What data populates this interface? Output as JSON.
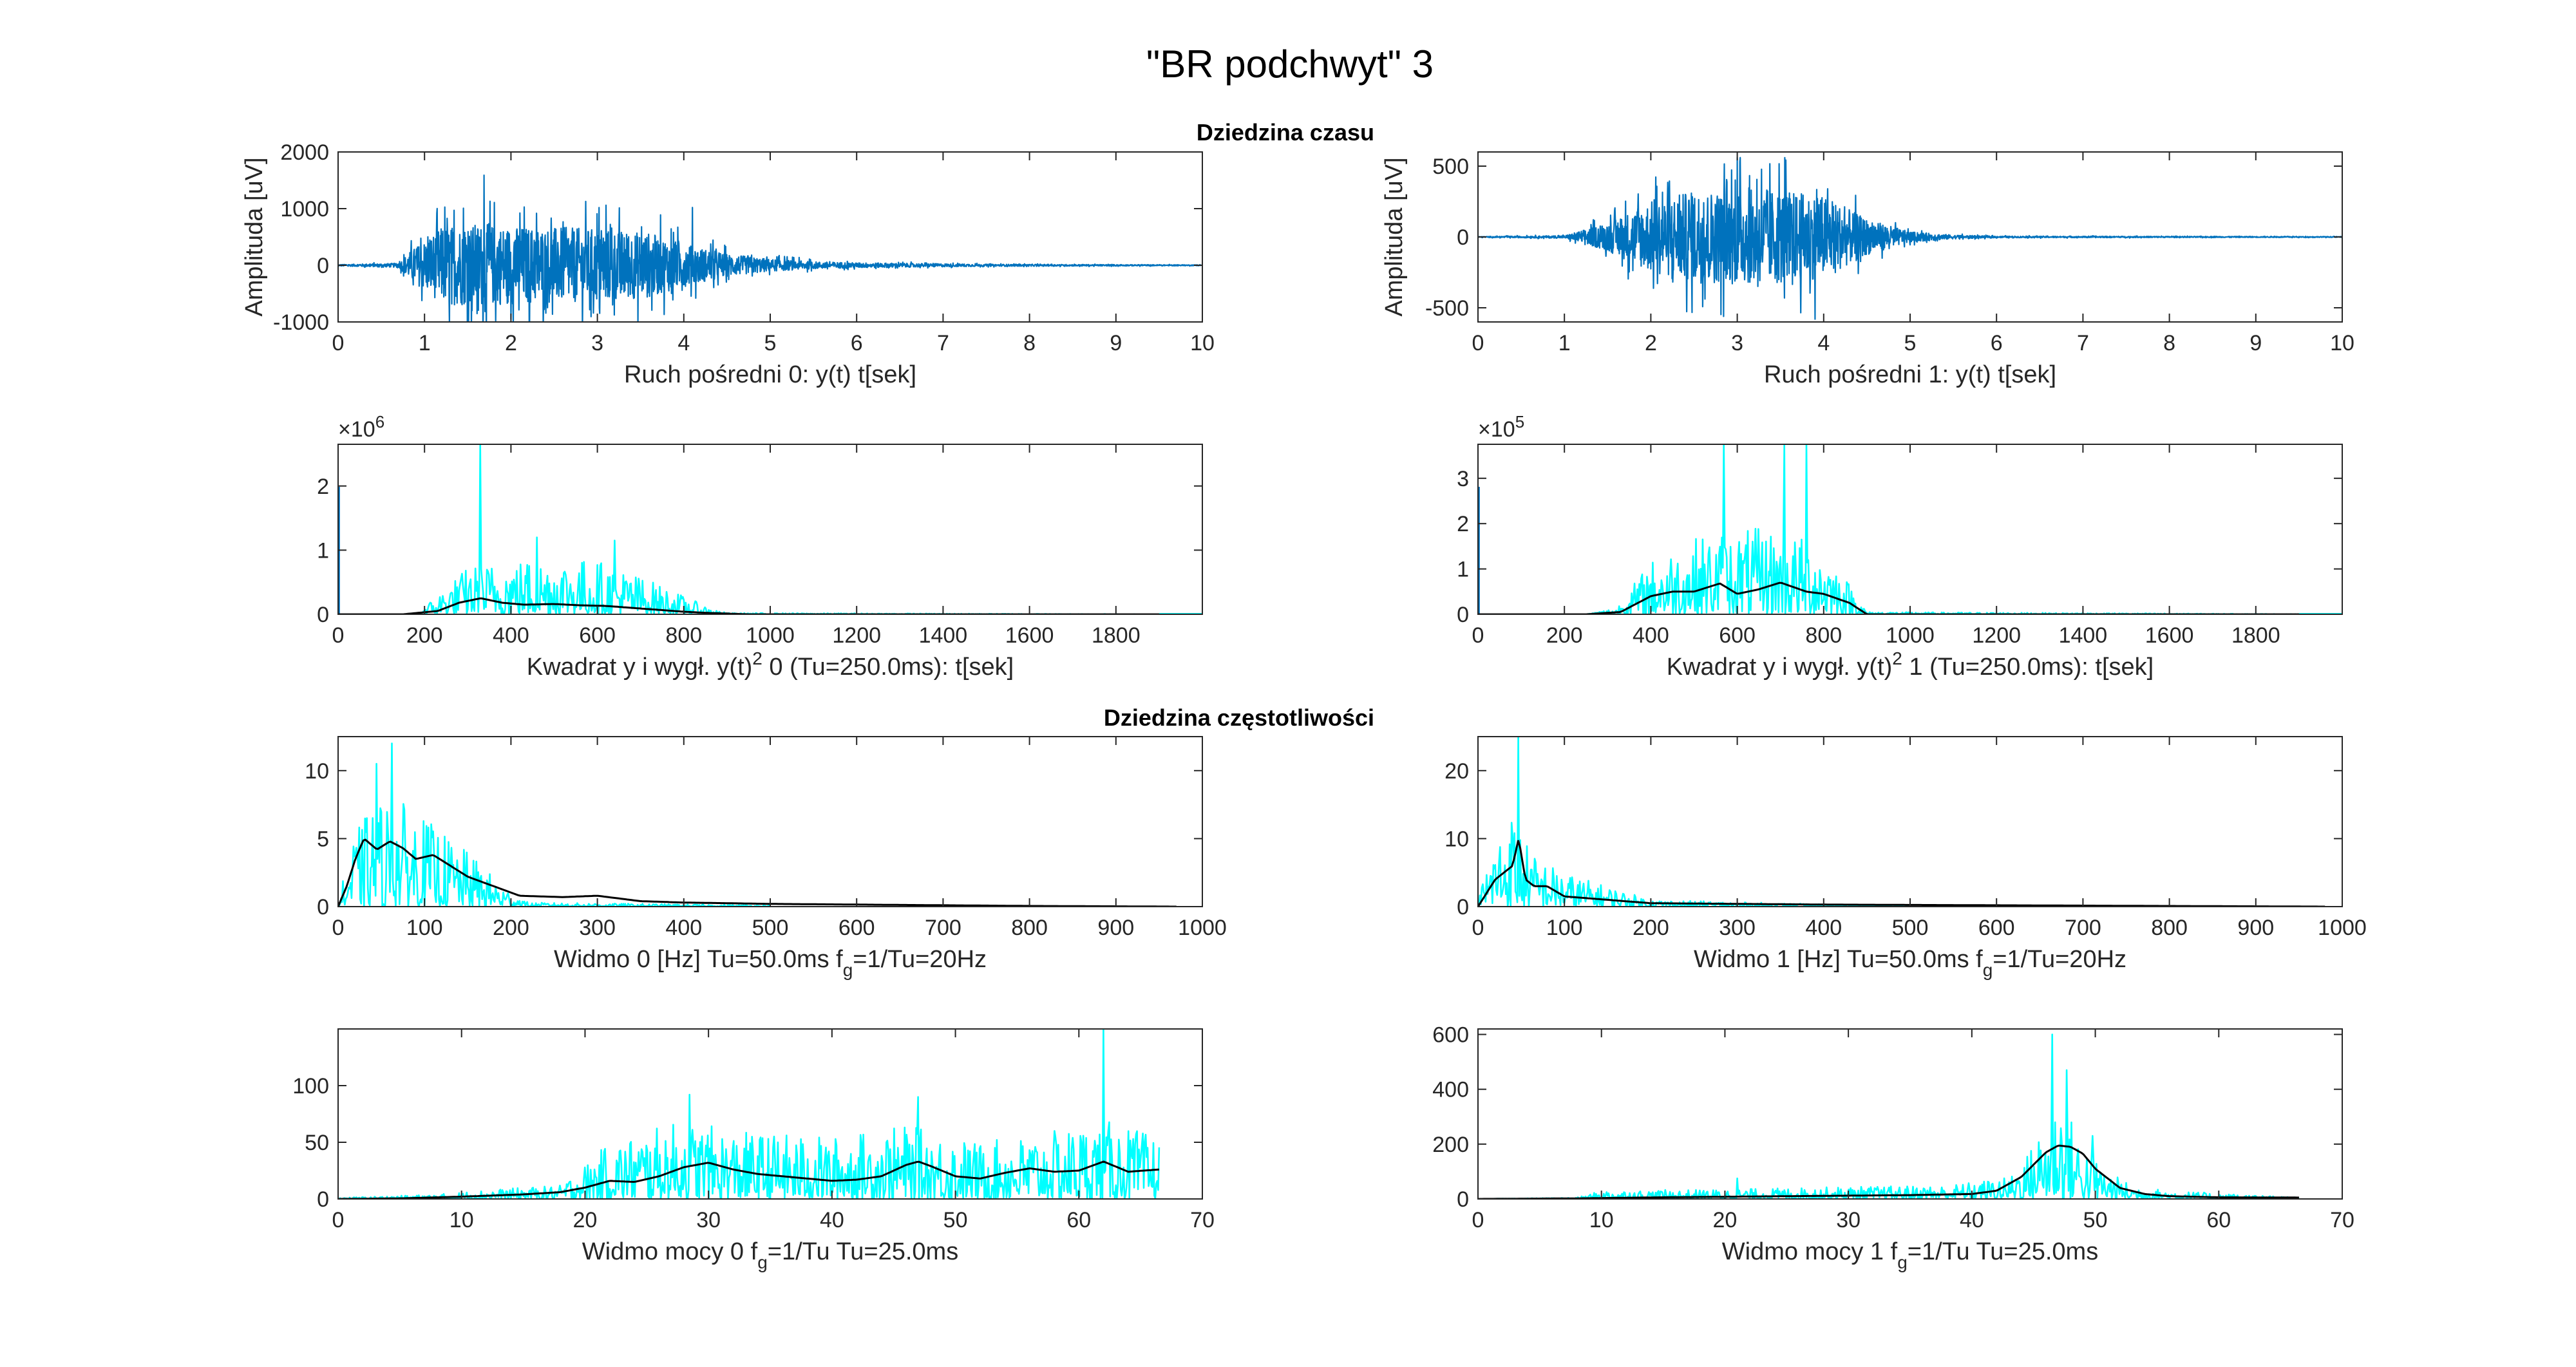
{
  "figure": {
    "title": "\"BR podchwyt\" 3",
    "section_time": "Dziedzina czasu",
    "section_freq": "Dziedzina częstotliwości"
  },
  "colors": {
    "raw_signal": "#0072BD",
    "cyan_trace": "#00FFFF",
    "smoothed": "#000000",
    "axes": "#262626"
  },
  "chart_data": [
    {
      "id": "time-0",
      "type": "line",
      "xlabel": "Ruch pośredni 0: y(t) t[sek]",
      "ylabel": "Amplituda [uV]",
      "xlim": [
        0,
        10
      ],
      "ylim": [
        -1000,
        2000
      ],
      "xticks": [
        "0",
        "1",
        "2",
        "3",
        "4",
        "5",
        "6",
        "7",
        "8",
        "9",
        "10"
      ],
      "yticks": [
        "-1000",
        "0",
        "1000",
        "2000"
      ],
      "envelope": {
        "x": [
          0,
          0.7,
          0.85,
          1.2,
          1.6,
          2.0,
          2.6,
          3.0,
          3.6,
          4.0,
          4.5,
          5.0,
          5.5,
          6.0,
          7.5,
          10
        ],
        "amp": [
          15,
          40,
          300,
          750,
          820,
          760,
          740,
          720,
          640,
          420,
          220,
          120,
          70,
          50,
          20,
          8
        ]
      },
      "peaks": [
        {
          "x": 1.69,
          "y": 1590
        },
        {
          "x": 1.55,
          "y": -800
        },
        {
          "x": 3.1,
          "y": 1060
        },
        {
          "x": 4.1,
          "y": 1020
        }
      ]
    },
    {
      "id": "time-1",
      "type": "line",
      "xlabel": "Ruch pośredni 1: y(t) t[sek]",
      "ylabel": "Amplituda [uV]",
      "xlim": [
        0,
        10
      ],
      "ylim": [
        -600,
        600
      ],
      "xticks": [
        "0",
        "1",
        "2",
        "3",
        "4",
        "5",
        "6",
        "7",
        "8",
        "9",
        "10"
      ],
      "yticks": [
        "-500",
        "0",
        "500"
      ],
      "envelope": {
        "x": [
          0,
          1.0,
          1.5,
          2.0,
          2.5,
          3.0,
          3.5,
          4.0,
          4.5,
          5.0,
          5.5,
          6.0,
          10
        ],
        "amp": [
          3,
          10,
          110,
          280,
          360,
          370,
          370,
          320,
          140,
          40,
          15,
          6,
          3
        ]
      },
      "peaks": [
        {
          "x": 3.0,
          "y": 560
        },
        {
          "x": 3.55,
          "y": 560
        },
        {
          "x": 3.9,
          "y": -580
        }
      ]
    },
    {
      "id": "sq-0",
      "type": "line",
      "xlabel_parts": [
        "Kwadrat y i wygł. y(t)",
        "2",
        " 0 (Tu=250.0ms): t[sek]"
      ],
      "exponent": "6",
      "xlim": [
        0,
        2000
      ],
      "ylim": [
        0,
        2.65
      ],
      "xticks": [
        "0",
        "200",
        "400",
        "600",
        "800",
        "1000",
        "1200",
        "1400",
        "1600",
        "1800"
      ],
      "yticks": [
        "0",
        "1",
        "2"
      ],
      "envelope": {
        "x": [
          0,
          180,
          220,
          300,
          400,
          500,
          600,
          700,
          780,
          860,
          900,
          2000
        ],
        "amp": [
          0,
          0,
          0.25,
          0.75,
          0.85,
          0.9,
          0.85,
          0.6,
          0.35,
          0.1,
          0.02,
          0
        ]
      },
      "peaks": [
        {
          "x": 330,
          "y": 2.65
        },
        {
          "x": 640,
          "y": 1.15
        },
        {
          "x": 460,
          "y": 1.2
        }
      ],
      "smooth": {
        "x": [
          0,
          150,
          230,
          280,
          330,
          380,
          430,
          500,
          560,
          620,
          680,
          740,
          800,
          860,
          950,
          1900
        ],
        "y": [
          0,
          0,
          0.05,
          0.18,
          0.25,
          0.18,
          0.15,
          0.16,
          0.14,
          0.13,
          0.1,
          0.07,
          0.04,
          0.02,
          0,
          0
        ]
      }
    },
    {
      "id": "sq-1",
      "type": "line",
      "xlabel_parts": [
        "Kwadrat y i wygł. y(t)",
        "2",
        " 1 (Tu=250.0ms): t[sek]"
      ],
      "exponent": "5",
      "xlim": [
        0,
        2000
      ],
      "ylim": [
        0,
        3.75
      ],
      "xticks": [
        "0",
        "200",
        "400",
        "600",
        "800",
        "1000",
        "1200",
        "1400",
        "1600",
        "1800"
      ],
      "yticks": [
        "0",
        "1",
        "2",
        "3"
      ],
      "envelope": {
        "x": [
          0,
          250,
          320,
          400,
          500,
          600,
          700,
          800,
          860,
          900,
          2000
        ],
        "amp": [
          0,
          0,
          0.15,
          1.2,
          1.7,
          1.9,
          1.9,
          1.5,
          0.7,
          0.05,
          0
        ]
      },
      "peaks": [
        {
          "x": 570,
          "y": 3.75
        },
        {
          "x": 710,
          "y": 3.75
        },
        {
          "x": 760,
          "y": 3.75
        }
      ],
      "smooth": {
        "x": [
          0,
          250,
          330,
          400,
          450,
          500,
          560,
          600,
          650,
          700,
          760,
          800,
          860,
          900,
          1900
        ],
        "y": [
          0,
          0,
          0.05,
          0.4,
          0.5,
          0.5,
          0.68,
          0.45,
          0.55,
          0.7,
          0.5,
          0.45,
          0.25,
          0,
          0
        ]
      }
    },
    {
      "id": "spec-0",
      "type": "line",
      "xlabel_parts": [
        "Widmo 0 [Hz] Tu=50.0ms f",
        "g",
        "=1/Tu=20Hz"
      ],
      "xlim": [
        0,
        1000
      ],
      "ylim": [
        0,
        12.5
      ],
      "xticks": [
        "0",
        "100",
        "200",
        "300",
        "400",
        "500",
        "600",
        "700",
        "800",
        "900",
        "1000"
      ],
      "yticks": [
        "0",
        "5",
        "10"
      ],
      "envelope": {
        "x": [
          0,
          10,
          20,
          40,
          60,
          80,
          100,
          130,
          160,
          190,
          220,
          500
        ],
        "amp": [
          0.5,
          3,
          5.5,
          7.5,
          8,
          7.5,
          6.5,
          5,
          3.5,
          1.5,
          0.3,
          0.1
        ]
      },
      "peaks": [
        {
          "x": 62,
          "y": 12
        },
        {
          "x": 45,
          "y": 10.5
        }
      ],
      "smooth": {
        "x": [
          0,
          10,
          20,
          30,
          45,
          60,
          75,
          90,
          110,
          130,
          150,
          180,
          210,
          260,
          300,
          350,
          400,
          500,
          800,
          970
        ],
        "y": [
          0,
          1.5,
          3.5,
          5,
          4.2,
          4.8,
          4.3,
          3.5,
          3.8,
          3.0,
          2.2,
          1.5,
          0.8,
          0.7,
          0.8,
          0.4,
          0.3,
          0.2,
          0.05,
          0
        ]
      }
    },
    {
      "id": "spec-1",
      "type": "line",
      "xlabel_parts": [
        "Widmo 1 [Hz] Tu=50.0ms f",
        "g",
        "=1/Tu=20Hz"
      ],
      "xlim": [
        0,
        1000
      ],
      "ylim": [
        0,
        25
      ],
      "xticks": [
        "0",
        "100",
        "200",
        "300",
        "400",
        "500",
        "600",
        "700",
        "800",
        "900",
        "1000"
      ],
      "yticks": [
        "0",
        "10",
        "20"
      ],
      "envelope": {
        "x": [
          0,
          10,
          20,
          30,
          40,
          50,
          60,
          100,
          150,
          200,
          500
        ],
        "amp": [
          1,
          6,
          10,
          12,
          14,
          12,
          8,
          5,
          3,
          1,
          0
        ]
      },
      "peaks": [
        {
          "x": 47,
          "y": 25
        }
      ],
      "smooth": {
        "x": [
          0,
          10,
          20,
          30,
          40,
          47,
          55,
          65,
          80,
          100,
          150,
          200,
          400,
          980
        ],
        "y": [
          0,
          2,
          4,
          5,
          6,
          10,
          4,
          3,
          3,
          1.5,
          1.0,
          0.5,
          0.3,
          0
        ]
      }
    },
    {
      "id": "power-0",
      "type": "line",
      "xlabel_parts": [
        "Widmo mocy 0 f",
        "g",
        "=1/Tu Tu=25.0ms"
      ],
      "xlim": [
        0,
        70
      ],
      "ylim": [
        0,
        150
      ],
      "xticks": [
        "0",
        "10",
        "20",
        "30",
        "40",
        "50",
        "60",
        "70"
      ],
      "yticks": [
        "0",
        "50",
        "100"
      ],
      "envelope": {
        "x": [
          0,
          8,
          12,
          18,
          22,
          28,
          32,
          40,
          46,
          52,
          58,
          62,
          66.5
        ],
        "amp": [
          1,
          4,
          8,
          12,
          50,
          70,
          60,
          55,
          65,
          50,
          60,
          70,
          55
        ]
      },
      "peaks": [
        {
          "x": 62,
          "y": 150
        },
        {
          "x": 28.5,
          "y": 92
        },
        {
          "x": 47,
          "y": 90
        }
      ],
      "smooth": {
        "x": [
          0,
          5,
          10,
          15,
          18,
          20,
          22,
          24,
          26,
          28,
          30,
          32,
          34,
          36,
          38,
          40,
          42,
          44,
          46,
          47,
          48,
          50,
          52,
          54,
          56,
          58,
          60,
          62,
          64,
          66.5
        ],
        "y": [
          0,
          0.5,
          2,
          4,
          6,
          10,
          16,
          15,
          20,
          28,
          32,
          26,
          22,
          20,
          18,
          16,
          17,
          20,
          30,
          33,
          29,
          20,
          18,
          23,
          27,
          24,
          25,
          33,
          24,
          26
        ]
      }
    },
    {
      "id": "power-1",
      "type": "line",
      "xlabel_parts": [
        "Widmo mocy 1 f",
        "g",
        "=1/Tu Tu=25.0ms"
      ],
      "xlim": [
        0,
        70
      ],
      "ylim": [
        0,
        620
      ],
      "xticks": [
        "0",
        "10",
        "20",
        "30",
        "40",
        "50",
        "60",
        "70"
      ],
      "yticks": [
        "0",
        "200",
        "400",
        "600"
      ],
      "envelope": {
        "x": [
          0,
          8,
          10,
          20,
          30,
          38,
          43,
          45,
          47,
          49,
          51,
          53,
          56,
          66.5
        ],
        "amp": [
          0,
          5,
          30,
          35,
          45,
          50,
          80,
          200,
          400,
          200,
          100,
          50,
          30,
          5
        ]
      },
      "peaks": [
        {
          "x": 46.5,
          "y": 600
        },
        {
          "x": 47.7,
          "y": 470
        },
        {
          "x": 49.8,
          "y": 230
        },
        {
          "x": 21,
          "y": 75
        }
      ],
      "smooth": {
        "x": [
          0,
          8,
          15,
          20,
          25,
          30,
          35,
          40,
          42,
          44,
          46,
          47,
          48,
          49,
          50,
          52,
          54,
          56,
          60,
          66.5
        ],
        "y": [
          0,
          2,
          6,
          8,
          10,
          12,
          14,
          18,
          30,
          80,
          170,
          195,
          190,
          165,
          110,
          40,
          18,
          10,
          6,
          5
        ]
      }
    }
  ]
}
